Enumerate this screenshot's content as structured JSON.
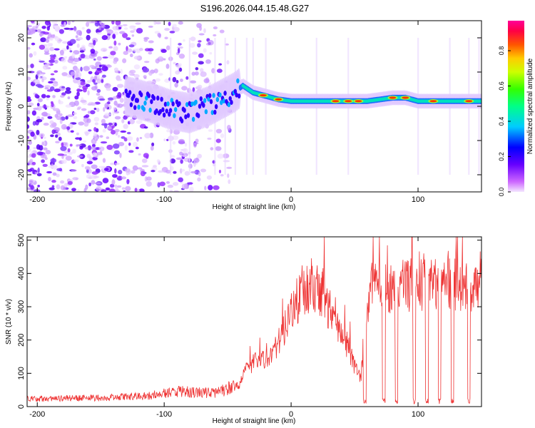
{
  "title": "S196.2026.044.15.48.G27",
  "chart_data": [
    {
      "type": "heatmap",
      "xlabel": "Height of straight line (km)",
      "ylabel": "Frequency (Hz)",
      "xlim": [
        -208,
        150
      ],
      "ylim": [
        -25,
        25
      ],
      "xticks": [
        -200,
        -100,
        0,
        100
      ],
      "yticks": [
        -20,
        -10,
        0,
        10,
        20
      ],
      "colorbar": {
        "label": "Normalized spectral amplitude",
        "range": [
          0,
          0.97
        ],
        "ticks": [
          0.0,
          0.2,
          0.4,
          0.6,
          0.8
        ],
        "tick_labels": [
          "0.0",
          "0.2",
          "0.4",
          "0.6",
          "0.8"
        ],
        "colormap": "rainbow"
      },
      "ridge": {
        "description_points_x": [
          -130,
          -110,
          -95,
          -80,
          -65,
          -55,
          -45,
          -38,
          -30,
          -20,
          -10,
          0,
          20,
          40,
          60,
          80,
          90,
          100,
          120,
          150
        ],
        "description_points_y": [
          3,
          1,
          -1,
          -2,
          0,
          2,
          4,
          6,
          4,
          3,
          2,
          1.5,
          1.5,
          1.5,
          1.5,
          2.5,
          2.5,
          1.5,
          1.5,
          1.5
        ],
        "peak_amplitude_x": [
          -22,
          -10,
          35,
          45,
          53,
          80,
          90,
          112,
          140
        ]
      }
    },
    {
      "type": "line",
      "xlabel": "Height of straight line (km)",
      "ylabel": "SNR (10 * v/v)",
      "xlim": [
        -208,
        150
      ],
      "ylim": [
        0,
        510
      ],
      "xticks": [
        -200,
        -100,
        0,
        100
      ],
      "yticks": [
        0,
        100,
        200,
        300,
        400,
        500
      ],
      "series": [
        {
          "name": "SNR",
          "color": "#ee3333",
          "x": [
            -208,
            -190,
            -170,
            -150,
            -130,
            -110,
            -100,
            -90,
            -80,
            -70,
            -60,
            -50,
            -42,
            -35,
            -30,
            -25,
            -20,
            -15,
            -10,
            -5,
            0,
            5,
            10,
            15,
            20,
            25,
            30,
            35,
            40,
            45,
            50,
            55,
            58,
            62,
            70,
            80,
            90,
            100,
            110,
            120,
            130,
            140,
            150
          ],
          "values": [
            20,
            20,
            22,
            22,
            25,
            28,
            35,
            38,
            38,
            35,
            35,
            45,
            60,
            110,
            130,
            150,
            130,
            160,
            200,
            240,
            290,
            320,
            340,
            360,
            330,
            350,
            290,
            260,
            220,
            180,
            120,
            80,
            250,
            360,
            350,
            360,
            360,
            370,
            360,
            370,
            370,
            360,
            370
          ],
          "dips_to_floor_at_x": [
            58,
            73,
            83,
            97,
            107,
            117,
            127,
            140
          ],
          "peak_max": 510
        }
      ]
    }
  ]
}
